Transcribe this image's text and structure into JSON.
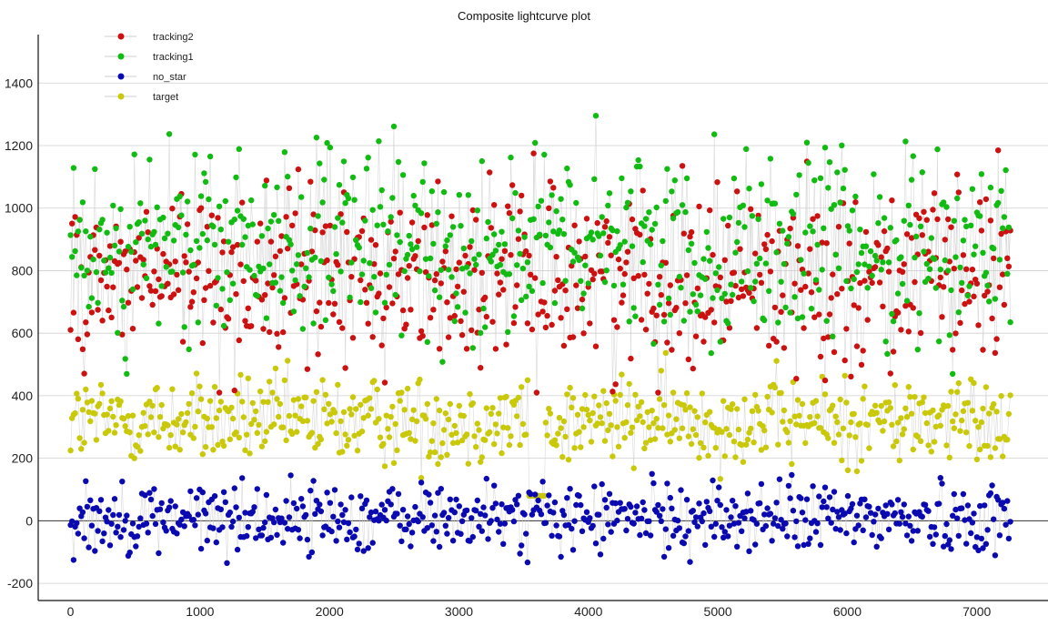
{
  "chart_data": {
    "type": "scatter",
    "title": "Composite lightcurve plot",
    "xlabel": "",
    "ylabel": "",
    "xlim": [
      -250,
      7550
    ],
    "ylim": [
      -255,
      1555
    ],
    "xticks": [
      0,
      1000,
      2000,
      3000,
      4000,
      5000,
      6000,
      7000
    ],
    "yticks": [
      -200,
      0,
      200,
      400,
      600,
      800,
      1000,
      1200,
      1400
    ],
    "grid": "horizontal",
    "legend_position": "top-left",
    "n_points": 7260,
    "series": [
      {
        "name": "tracking2",
        "color": "#cc1111",
        "mean": 780,
        "spread": 140,
        "min": 410,
        "max": 1320,
        "marker": "circle",
        "connected": true
      },
      {
        "name": "tracking1",
        "color": "#11bb11",
        "mean": 880,
        "spread": 150,
        "min": 470,
        "max": 1460,
        "marker": "circle",
        "connected": true
      },
      {
        "name": "no_star",
        "color": "#0a0ab0",
        "mean": 10,
        "spread": 55,
        "min": -170,
        "max": 175,
        "marker": "circle",
        "connected": true
      },
      {
        "name": "target",
        "color": "#c9c90a",
        "mean": 320,
        "spread": 70,
        "min": 80,
        "max": 610,
        "marker": "circle",
        "connected": true
      }
    ],
    "annotations": [
      {
        "x": 3600,
        "note_series": "target",
        "value": 20
      }
    ]
  }
}
